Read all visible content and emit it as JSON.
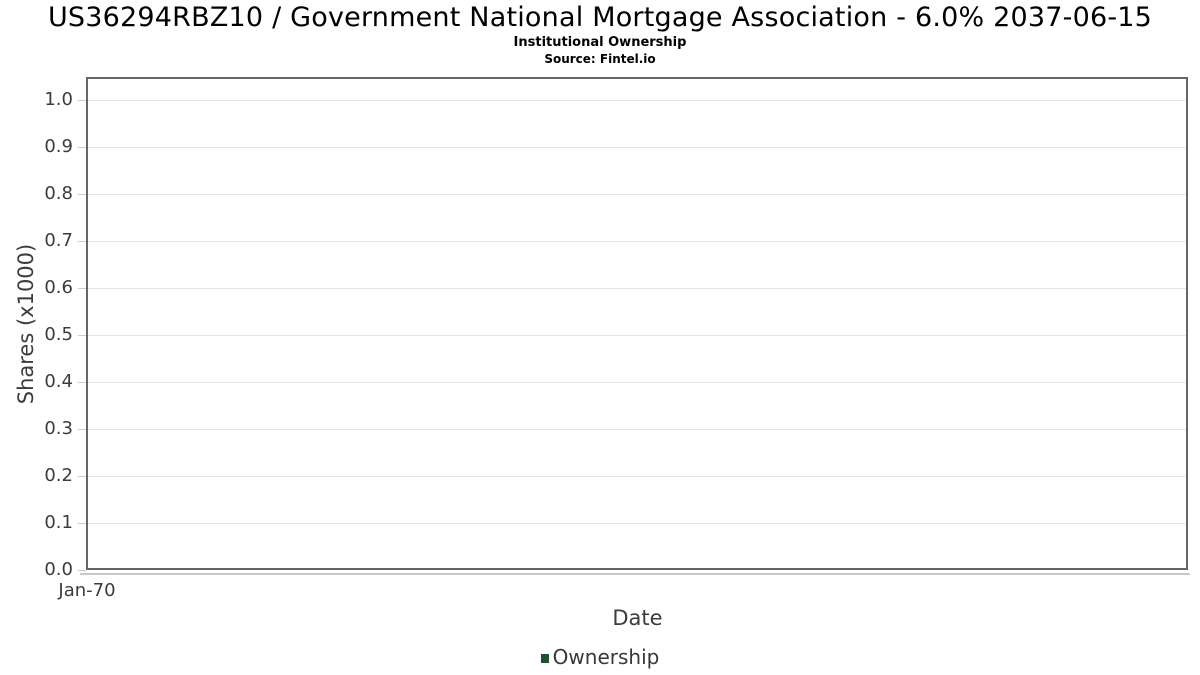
{
  "chart": {
    "title": "US36294RBZ10 / Government National Mortgage Association - 6.0% 2037-06-15",
    "subtitle": "Institutional Ownership",
    "source": "Source: Fintel.io"
  },
  "chart_data": {
    "type": "line",
    "title": "US36294RBZ10 / Government National Mortgage Association - 6.0% 2037-06-15",
    "subtitle": "Institutional Ownership",
    "source": "Source: Fintel.io",
    "xlabel": "Date",
    "ylabel": "Shares (x1000)",
    "x_tick_labels": [
      "Jan-70"
    ],
    "y_ticks": [
      0.0,
      0.1,
      0.2,
      0.3,
      0.4,
      0.5,
      0.6,
      0.7,
      0.8,
      0.9,
      1.0
    ],
    "y_tick_decimals": 1,
    "ylim": [
      0.0,
      1.05
    ],
    "grid": true,
    "legend_position": "bottom",
    "series": [
      {
        "name": "Ownership",
        "color": "#1d5331",
        "x": [],
        "values": []
      }
    ],
    "colors": {
      "plot_border": "#666666",
      "gridline": "#e4e4e4",
      "tick": "#cccccc",
      "axis_text": "#3c3c3c",
      "title_text": "#000000",
      "legend_marker": "#1d5331"
    }
  }
}
